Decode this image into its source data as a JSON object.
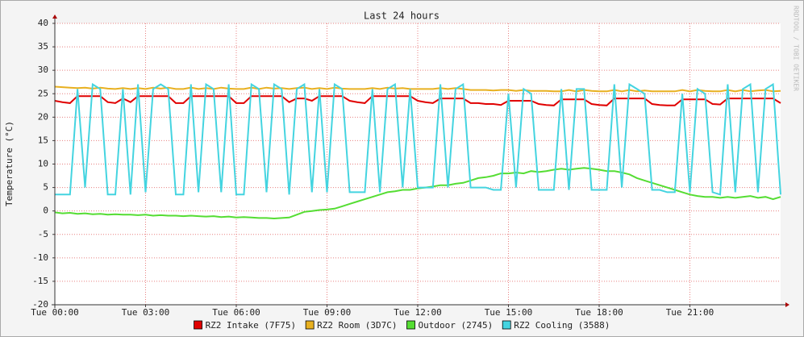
{
  "chart_data": {
    "type": "line",
    "title": "Last 24 hours",
    "y_label": "Temperature (°C)",
    "watermark": "RRDTOOL / TOBI OETIKER",
    "x": [
      0,
      0.25,
      0.5,
      0.75,
      1,
      1.25,
      1.5,
      1.75,
      2,
      2.25,
      2.5,
      2.75,
      3,
      3.25,
      3.5,
      3.75,
      4,
      4.25,
      4.5,
      4.75,
      5,
      5.25,
      5.5,
      5.75,
      6,
      6.25,
      6.5,
      6.75,
      7,
      7.25,
      7.5,
      7.75,
      8,
      8.25,
      8.5,
      8.75,
      9,
      9.25,
      9.5,
      9.75,
      10,
      10.25,
      10.5,
      10.75,
      11,
      11.25,
      11.5,
      11.75,
      12,
      12.25,
      12.5,
      12.75,
      13,
      13.25,
      13.5,
      13.75,
      14,
      14.25,
      14.5,
      14.75,
      15,
      15.25,
      15.5,
      15.75,
      16,
      16.25,
      16.5,
      16.75,
      17,
      17.25,
      17.5,
      17.75,
      18,
      18.25,
      18.5,
      18.75,
      19,
      19.25,
      19.5,
      19.75,
      20,
      20.25,
      20.5,
      20.75,
      21,
      21.25,
      21.5,
      21.75,
      22,
      22.25,
      22.5,
      22.75,
      23,
      23.25,
      23.5,
      23.75,
      24
    ],
    "xlim": [
      0,
      24
    ],
    "xticks": [
      {
        "value": 0,
        "label": "Tue 00:00"
      },
      {
        "value": 3,
        "label": "Tue 03:00"
      },
      {
        "value": 6,
        "label": "Tue 06:00"
      },
      {
        "value": 9,
        "label": "Tue 09:00"
      },
      {
        "value": 12,
        "label": "Tue 12:00"
      },
      {
        "value": 15,
        "label": "Tue 15:00"
      },
      {
        "value": 18,
        "label": "Tue 18:00"
      },
      {
        "value": 21,
        "label": "Tue 21:00"
      }
    ],
    "ylim": [
      -20,
      40
    ],
    "yticks": [
      -20,
      -15,
      -10,
      -5,
      0,
      5,
      10,
      15,
      20,
      25,
      30,
      35,
      40
    ],
    "grid": true,
    "legend": "bottom",
    "series": [
      {
        "name": "RZ2 Intake (7F75)",
        "color": "#e00000",
        "values": [
          23.5,
          23.2,
          23,
          24.5,
          24.5,
          24.5,
          24.5,
          23.2,
          23,
          24,
          23.2,
          24.5,
          24.5,
          24.5,
          24.5,
          24.5,
          23,
          23,
          24.5,
          24.5,
          24.5,
          24.5,
          24.5,
          24.5,
          23,
          23,
          24.5,
          24.5,
          24.5,
          24.5,
          24.5,
          23.2,
          24,
          24,
          23.5,
          24.5,
          24.5,
          24.5,
          24.5,
          23.5,
          23.2,
          23,
          24.5,
          24.5,
          24.5,
          24.5,
          24.5,
          24.5,
          23.5,
          23.2,
          23,
          24,
          24,
          24,
          24,
          23,
          23,
          22.8,
          22.8,
          22.6,
          23.5,
          23.5,
          23.5,
          23.5,
          22.8,
          22.6,
          22.5,
          23.8,
          23.8,
          23.8,
          23.8,
          22.8,
          22.6,
          22.5,
          24,
          24,
          24,
          24,
          24,
          22.8,
          22.6,
          22.5,
          22.5,
          23.8,
          23.8,
          23.8,
          23.8,
          22.8,
          22.7,
          24,
          24,
          24,
          24,
          24,
          24,
          24,
          23
        ]
      },
      {
        "name": "RZ2 Room (3D7C)",
        "color": "#e8b020",
        "values": [
          26.5,
          26.4,
          26.3,
          26.2,
          26.3,
          26.1,
          26.3,
          26.1,
          26,
          26.2,
          26,
          26.2,
          26,
          26.3,
          26.1,
          26.3,
          26,
          26,
          26.3,
          26,
          26.2,
          26,
          26.3,
          26.1,
          26,
          26,
          26.3,
          26,
          26.3,
          26.1,
          26.2,
          26,
          26.2,
          26.3,
          26,
          26.2,
          26,
          26.3,
          26.1,
          26,
          26,
          26,
          26.2,
          26,
          26.3,
          26.1,
          26.2,
          26,
          26,
          26,
          26,
          26.2,
          26,
          26.2,
          26,
          25.8,
          25.8,
          25.8,
          25.7,
          25.8,
          25.8,
          25.6,
          25.8,
          25.6,
          25.6,
          25.6,
          25.5,
          25.5,
          25.8,
          25.5,
          25.8,
          25.6,
          25.5,
          25.5,
          25.8,
          25.5,
          25.8,
          25.5,
          25.7,
          25.5,
          25.5,
          25.5,
          25.5,
          25.8,
          25.5,
          25.8,
          25.6,
          25.5,
          25.5,
          25.8,
          25.5,
          25.8,
          25.5,
          25.7,
          25.8,
          25.5,
          25.6
        ]
      },
      {
        "name": "Outdoor (2745)",
        "color": "#55dd33",
        "values": [
          -0.3,
          -0.5,
          -0.4,
          -0.6,
          -0.5,
          -0.7,
          -0.6,
          -0.8,
          -0.7,
          -0.8,
          -0.8,
          -0.9,
          -0.8,
          -1,
          -0.9,
          -1,
          -1,
          -1.1,
          -1,
          -1.1,
          -1.2,
          -1.1,
          -1.3,
          -1.2,
          -1.4,
          -1.3,
          -1.4,
          -1.5,
          -1.5,
          -1.6,
          -1.5,
          -1.4,
          -0.8,
          -0.2,
          0,
          0.2,
          0.3,
          0.5,
          1,
          1.5,
          2,
          2.5,
          3,
          3.5,
          4,
          4.2,
          4.5,
          4.5,
          4.8,
          5,
          5.2,
          5.5,
          5.5,
          5.8,
          6,
          6.5,
          7,
          7.2,
          7.5,
          8,
          8,
          8.2,
          8,
          8.5,
          8.3,
          8.5,
          8.8,
          9,
          8.8,
          9,
          9.2,
          9,
          8.8,
          8.5,
          8.5,
          8.2,
          7.8,
          7,
          6.5,
          6,
          5.5,
          5,
          4.5,
          4,
          3.5,
          3.2,
          3,
          3,
          2.8,
          3,
          2.8,
          3,
          3.2,
          2.8,
          3,
          2.5,
          3
        ]
      },
      {
        "name": "RZ2 Cooling (3588)",
        "color": "#44d4e0",
        "values": [
          3.5,
          3.5,
          3.5,
          26,
          5,
          27,
          26,
          3.5,
          3.5,
          26,
          3.5,
          27,
          4,
          26,
          27,
          26,
          3.5,
          3.5,
          27,
          4,
          27,
          26,
          4,
          27,
          3.5,
          3.5,
          27,
          26,
          4,
          27,
          26,
          3.5,
          26,
          27,
          4,
          26,
          4,
          27,
          26,
          4,
          4,
          4,
          26,
          4,
          26,
          27,
          5,
          26,
          5,
          5,
          5,
          27,
          5,
          26,
          27,
          5,
          5,
          5,
          4.5,
          4.5,
          25,
          5,
          26,
          25,
          4.5,
          4.5,
          4.5,
          26,
          4.5,
          26,
          26,
          4.5,
          4.5,
          4.5,
          27,
          5,
          27,
          26,
          25,
          4.5,
          4.5,
          4,
          4,
          25,
          4,
          26,
          25,
          4,
          3.5,
          27,
          4,
          26,
          27,
          4,
          26,
          27,
          3.5
        ]
      }
    ]
  }
}
